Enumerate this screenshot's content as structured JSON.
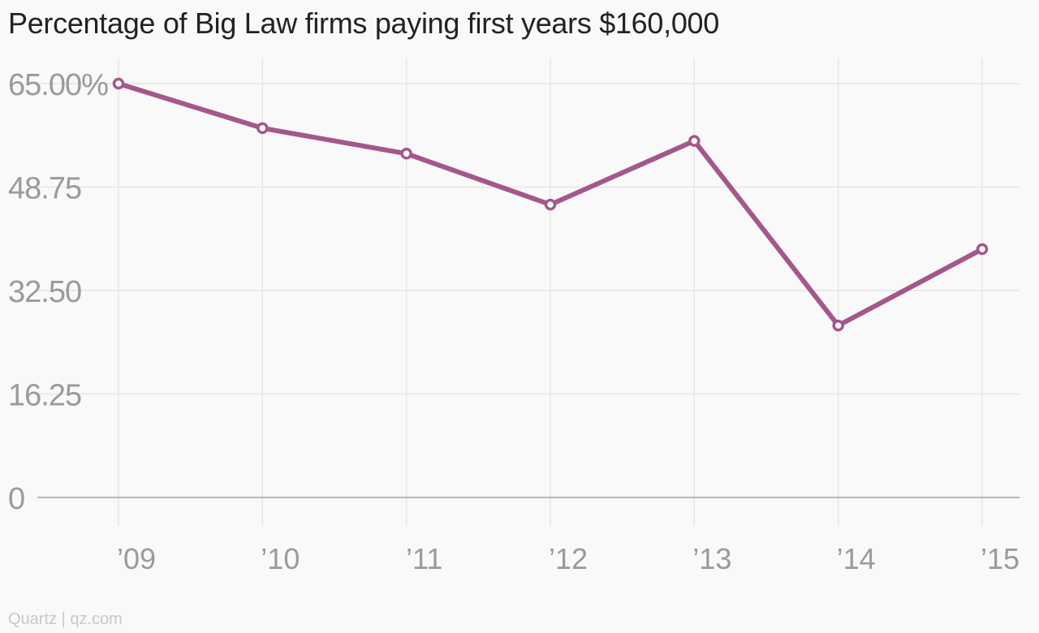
{
  "chart_data": {
    "type": "line",
    "title": "Percentage of Big Law firms paying first years $160,000",
    "xlabel": "",
    "ylabel": "",
    "categories": [
      "’09",
      "’10",
      "’11",
      "’12",
      "’13",
      "’14",
      "’15"
    ],
    "series": [
      {
        "values": [
          65.0,
          58.0,
          54.0,
          46.0,
          56.0,
          27.0,
          39.0
        ]
      }
    ],
    "yticks": [
      0,
      16.25,
      32.5,
      48.75,
      65
    ],
    "ytick_labels": [
      "0",
      "16.25",
      "32.50",
      "48.75",
      "65.00%"
    ],
    "ylim": [
      0,
      65
    ],
    "grid": true,
    "legend": "none",
    "colors": {
      "line": "#a4578a",
      "grid": "#e6e6e6",
      "axis": "#a0a0a0",
      "tick_text": "#9a9a9a"
    }
  },
  "footer": {
    "source": "Quartz | qz.com"
  }
}
